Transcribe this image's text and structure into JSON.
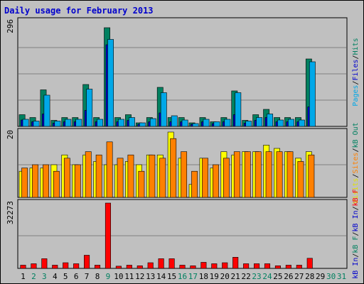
{
  "chart_data": {
    "title": "Daily usage for February 2013",
    "type": "bar",
    "categories": [
      "1",
      "2",
      "3",
      "4",
      "5",
      "6",
      "7",
      "8",
      "9",
      "10",
      "11",
      "12",
      "13",
      "14",
      "15",
      "16",
      "17",
      "18",
      "19",
      "20",
      "21",
      "22",
      "23",
      "24",
      "25",
      "26",
      "27",
      "28",
      "29",
      "30",
      "31"
    ],
    "weekend_days": [
      "2",
      "3",
      "9",
      "16",
      "17",
      "23",
      "24",
      "30",
      "31"
    ],
    "panels": [
      {
        "id": "top",
        "ymax_label": "296",
        "ymax": 296,
        "right_labels": [
          {
            "text": "Pages",
            "color": "#00a8e8"
          },
          {
            "text": "/",
            "color": "#000000"
          },
          {
            "text": "Files",
            "color": "#0000cc"
          },
          {
            "text": "/",
            "color": "#000000"
          },
          {
            "text": "Hits",
            "color": "#008060"
          }
        ],
        "series": [
          {
            "name": "Hits",
            "color": "#008060",
            "values": [
              33,
              25,
              103,
              17,
              25,
              25,
              118,
              25,
              278,
              25,
              33,
              10,
              25,
              110,
              25,
              25,
              10,
              25,
              13,
              25,
              100,
              17,
              33,
              48,
              25,
              25,
              25,
              190,
              0,
              0,
              0
            ]
          },
          {
            "name": "Files",
            "color": "#0000cc",
            "values": [
              18,
              13,
              35,
              9,
              13,
              13,
              45,
              13,
              230,
              13,
              17,
              6,
              13,
              38,
              13,
              13,
              6,
              13,
              8,
              13,
              33,
              9,
              17,
              25,
              13,
              13,
              13,
              55,
              0,
              0,
              0
            ]
          },
          {
            "name": "Pages",
            "color": "#00a8e8",
            "values": [
              20,
              15,
              88,
              15,
              20,
              20,
              105,
              20,
              245,
              20,
              25,
              10,
              22,
              95,
              30,
              18,
              8,
              20,
              13,
              20,
              95,
              15,
              25,
              35,
              18,
              20,
              18,
              182,
              0,
              0,
              0
            ]
          }
        ]
      },
      {
        "id": "middle",
        "ymax_label": "20",
        "ymax": 20,
        "right_labels": [
          {
            "text": "Visits",
            "color": "#e0e000"
          },
          {
            "text": "/",
            "color": "#000000"
          },
          {
            "text": "Sites",
            "color": "#ff8000"
          },
          {
            "text": "/",
            "color": "#000000"
          },
          {
            "text": "kB Out",
            "color": "#008060"
          }
        ],
        "series": [
          {
            "name": "Visits",
            "color": "#ffff00",
            "values": [
              8,
              9,
              9,
              10,
              13,
              10,
              13,
              11,
              10,
              10,
              11,
              10,
              13,
              13,
              20,
              12,
              4,
              12,
              9,
              14,
              13,
              14,
              14,
              16,
              15,
              14,
              12,
              14,
              0,
              0,
              0
            ]
          },
          {
            "name": "Sites",
            "color": "#ff8000",
            "values": [
              9,
              10,
              10,
              8,
              12,
              10,
              14,
              13,
              17,
              12,
              13,
              8,
              13,
              12,
              18,
              14,
              8,
              12,
              10,
              12,
              14,
              14,
              14,
              14,
              14,
              14,
              11,
              13,
              0,
              0,
              0
            ]
          }
        ]
      },
      {
        "id": "bottom",
        "ymax_label": "32273",
        "ymax": 32273,
        "right_labels": [
          {
            "text": "kB In",
            "color": "#0000cc"
          },
          {
            "text": "/",
            "color": "#000000"
          },
          {
            "text": "kB F",
            "color": "#008060"
          },
          {
            "text": "/",
            "color": "#000000"
          },
          {
            "text": "kB In",
            "color": "#0000cc"
          },
          {
            "text": "/",
            "color": "#000000"
          },
          {
            "text": "kB F",
            "color": "#ff0000"
          }
        ],
        "series": [
          {
            "name": "kB F",
            "color": "#ff0000",
            "values": [
              1600,
              2300,
              4800,
              1600,
              2800,
              2300,
              6500,
              1600,
              32273,
              1100,
              1600,
              1300,
              2800,
              4800,
              4800,
              1600,
              1300,
              3000,
              2300,
              2800,
              5500,
              2300,
              2300,
              2300,
              1300,
              1600,
              1600,
              5000,
              0,
              0,
              0
            ]
          }
        ]
      }
    ]
  }
}
